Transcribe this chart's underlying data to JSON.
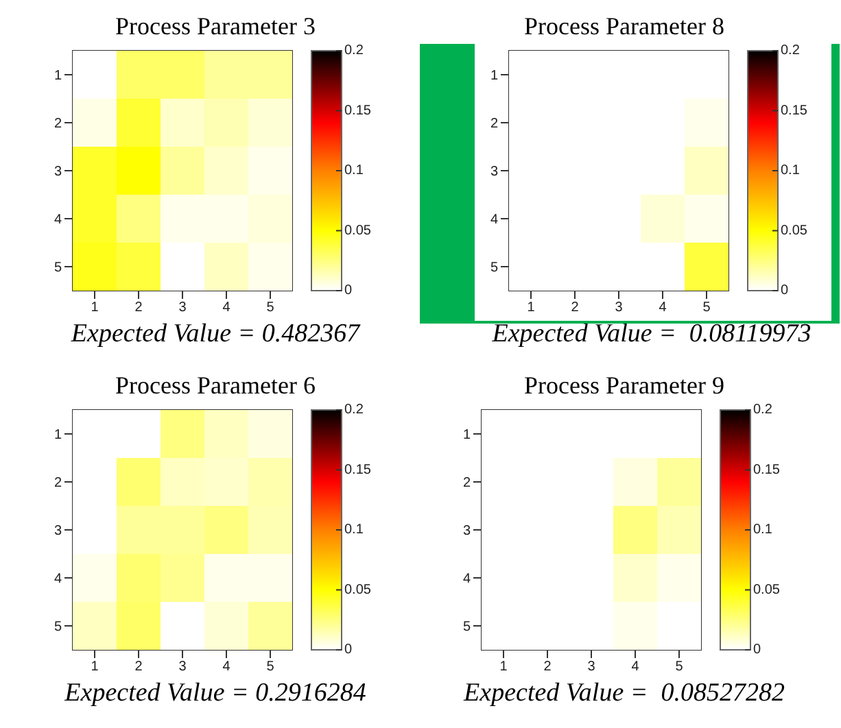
{
  "chart_data": [
    {
      "type": "heatmap",
      "title": "Process Parameter 3",
      "categories": [
        "1",
        "2",
        "3",
        "4",
        "5"
      ],
      "y_categories": [
        "1",
        "2",
        "3",
        "4",
        "5"
      ],
      "cells": [
        [
          0,
          0.03,
          0.03,
          0.02,
          0.02
        ],
        [
          0.005,
          0.04,
          0.01,
          0.015,
          0.008
        ],
        [
          0.042,
          0.05,
          0.02,
          0.01,
          0.004
        ],
        [
          0.042,
          0.025,
          0.004,
          0.004,
          0.007
        ],
        [
          0.045,
          0.038,
          0,
          0.012,
          0.004
        ]
      ],
      "clim": [
        0,
        0.2
      ],
      "cticks": [
        0,
        0.05,
        0.1,
        0.15,
        0.2
      ],
      "annotations": [
        "Expected Value = 0.482367"
      ]
    },
    {
      "type": "heatmap",
      "title": "Process Parameter 8",
      "categories": [
        "1",
        "2",
        "3",
        "4",
        "5"
      ],
      "y_categories": [
        "1",
        "2",
        "3",
        "4",
        "5"
      ],
      "cells": [
        [
          0,
          0,
          0,
          0,
          0
        ],
        [
          0,
          0,
          0,
          0,
          0.004
        ],
        [
          0,
          0,
          0,
          0,
          0.012
        ],
        [
          0,
          0,
          0,
          0.008,
          0.004
        ],
        [
          0,
          0,
          0,
          0,
          0.038
        ]
      ],
      "clim": [
        0,
        0.2
      ],
      "cticks": [
        0,
        0.05,
        0.1,
        0.15,
        0.2
      ],
      "annotations": [
        "Expected Value =  0.08119973"
      ]
    },
    {
      "type": "heatmap",
      "title": "Process Parameter 6",
      "categories": [
        "1",
        "2",
        "3",
        "4",
        "5"
      ],
      "y_categories": [
        "1",
        "2",
        "3",
        "4",
        "5"
      ],
      "cells": [
        [
          0,
          0,
          0.025,
          0.012,
          0.006
        ],
        [
          0,
          0.028,
          0.012,
          0.01,
          0.016
        ],
        [
          0,
          0.02,
          0.02,
          0.025,
          0.015
        ],
        [
          0.004,
          0.028,
          0.022,
          0.004,
          0.004
        ],
        [
          0.012,
          0.03,
          0,
          0.008,
          0.02
        ]
      ],
      "clim": [
        0,
        0.2
      ],
      "cticks": [
        0,
        0.05,
        0.1,
        0.15,
        0.2
      ],
      "annotations": [
        "Expected Value = 0.2916284"
      ]
    },
    {
      "type": "heatmap",
      "title": "Process Parameter 9",
      "categories": [
        "1",
        "2",
        "3",
        "4",
        "5"
      ],
      "y_categories": [
        "1",
        "2",
        "3",
        "4",
        "5"
      ],
      "cells": [
        [
          0,
          0,
          0,
          0,
          0
        ],
        [
          0,
          0,
          0,
          0.006,
          0.02
        ],
        [
          0,
          0,
          0,
          0.025,
          0.015
        ],
        [
          0,
          0,
          0,
          0.01,
          0.004
        ],
        [
          0,
          0,
          0,
          0.004,
          0
        ]
      ],
      "clim": [
        0,
        0.2
      ],
      "cticks": [
        0,
        0.05,
        0.1,
        0.15,
        0.2
      ],
      "annotations": [
        "Expected Value =  0.08527282"
      ]
    }
  ]
}
